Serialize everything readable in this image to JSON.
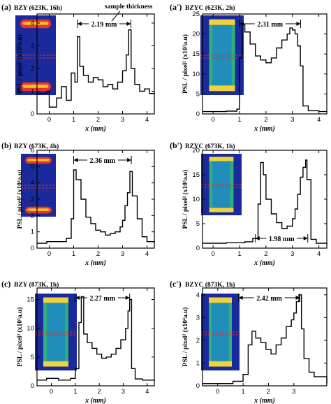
{
  "figure": {
    "note": "sample thickness",
    "colors": {
      "trace": "#000000",
      "inset_bg": "#1a2a9c",
      "marker_line": "#e03030"
    }
  },
  "chart_data": [
    {
      "type": "line",
      "label": "(a)",
      "title": "BZY (623K, 16h)",
      "xlabel": "x (mm)",
      "ylabel": "PSL / pixel² (x10³a.u)",
      "xlim": [
        -0.5,
        4.3
      ],
      "ylim": [
        0,
        4.4
      ],
      "xticks": [
        "0",
        "1",
        "2",
        "3",
        "4"
      ],
      "yticks": [
        "0",
        "1",
        "2",
        "3",
        "4"
      ],
      "thickness": {
        "text": "2.19 mm",
        "from": 1.15,
        "to": 3.34
      },
      "inset": "two-end",
      "series": [
        {
          "x": [
            -0.5,
            -0.1,
            0.0,
            0.3,
            0.5,
            0.7,
            0.9,
            1.05,
            1.15,
            1.25,
            1.4,
            1.6,
            1.8,
            2.0,
            2.2,
            2.4,
            2.6,
            2.8,
            3.0,
            3.15,
            3.25,
            3.35,
            3.5,
            3.7,
            3.9,
            4.1,
            4.3
          ],
          "y": [
            0.9,
            1.0,
            0.3,
            0.7,
            1.2,
            0.6,
            1.8,
            1.4,
            3.4,
            2.1,
            1.7,
            1.4,
            1.6,
            1.5,
            1.2,
            1.3,
            1.1,
            1.4,
            1.9,
            2.6,
            3.7,
            2.0,
            1.3,
            1.0,
            1.1,
            0.9,
            1.0
          ]
        }
      ]
    },
    {
      "type": "line",
      "label": "(a′)",
      "title": "BZYC (623K, 2h)",
      "xlabel": "x (mm)",
      "ylabel": "PSL / pixel² (x10³a.u)",
      "xlim": [
        -0.4,
        4.3
      ],
      "ylim": [
        0,
        25
      ],
      "xticks": [
        "0",
        "1",
        "2",
        "3",
        "4"
      ],
      "yticks": [
        "0",
        "5",
        "10",
        "15",
        "20",
        "25"
      ],
      "thickness": {
        "text": "2.31 mm",
        "from": 1.0,
        "to": 3.31
      },
      "inset": "filled",
      "series": [
        {
          "x": [
            -0.4,
            0.0,
            0.5,
            0.9,
            1.0,
            1.1,
            1.2,
            1.4,
            1.6,
            1.8,
            2.0,
            2.2,
            2.4,
            2.6,
            2.8,
            2.9,
            3.0,
            3.1,
            3.2,
            3.3,
            3.4,
            3.6,
            4.0,
            4.3
          ],
          "y": [
            0.6,
            0.6,
            0.7,
            1.2,
            14,
            22.5,
            20.5,
            17.5,
            14.5,
            13.5,
            12.8,
            14,
            16.5,
            18.5,
            20,
            21.5,
            21,
            20,
            17,
            12,
            2,
            0.8,
            0.6,
            0.5
          ]
        }
      ]
    },
    {
      "type": "line",
      "label": "(b)",
      "title": "BZY (673K, 4h)",
      "xlabel": "x (mm)",
      "ylabel": "PSL / pixel² (x10³a.u)",
      "xlim": [
        -0.5,
        4.3
      ],
      "ylim": [
        0,
        6
      ],
      "xticks": [
        "0",
        "1",
        "2",
        "3",
        "4"
      ],
      "yticks": [
        "0",
        "1",
        "2",
        "3",
        "4",
        "5",
        "6"
      ],
      "thickness": {
        "text": "2.36 mm",
        "from": 1.0,
        "to": 3.36
      },
      "inset": "two-end",
      "series": [
        {
          "x": [
            -0.5,
            -0.1,
            0.3,
            0.7,
            0.9,
            1.0,
            1.1,
            1.3,
            1.5,
            1.7,
            1.9,
            2.1,
            2.3,
            2.5,
            2.7,
            2.9,
            3.0,
            3.1,
            3.2,
            3.3,
            3.4,
            3.6,
            3.8,
            4.0,
            4.3
          ],
          "y": [
            0.3,
            0.4,
            0.4,
            0.6,
            1.8,
            4.8,
            4.2,
            3.0,
            1.9,
            1.5,
            1.1,
            1.0,
            0.8,
            0.9,
            1.0,
            1.3,
            1.7,
            2.6,
            3.4,
            4.7,
            3.2,
            1.8,
            0.7,
            0.4,
            0.3
          ]
        }
      ]
    },
    {
      "type": "line",
      "label": "(b′)",
      "title": "BZYC (673K, 1h)",
      "xlabel": "x (mm)",
      "ylabel": "PSL / pixel² (x10³a.u)",
      "xlim": [
        -0.4,
        4.3
      ],
      "ylim": [
        0,
        20
      ],
      "xticks": [
        "0",
        "1",
        "2",
        "3",
        "4"
      ],
      "yticks": [
        "0",
        "5",
        "10",
        "15",
        "20"
      ],
      "thickness": {
        "text": "1.98 mm",
        "from": 1.6,
        "to": 3.58
      },
      "inset": "filled",
      "series": [
        {
          "x": [
            -0.4,
            0.5,
            1.2,
            1.5,
            1.7,
            1.8,
            1.9,
            2.0,
            2.2,
            2.4,
            2.6,
            2.8,
            3.0,
            3.1,
            3.2,
            3.3,
            3.4,
            3.5,
            3.55,
            3.7,
            3.9,
            4.3
          ],
          "y": [
            1.0,
            1.1,
            1.3,
            2.0,
            9.0,
            17.5,
            15.0,
            10.0,
            7.0,
            5.2,
            4.0,
            4.5,
            6.0,
            8.0,
            11.0,
            14.5,
            16.5,
            18.0,
            14.0,
            1.8,
            1.0,
            0.8
          ]
        }
      ]
    },
    {
      "type": "line",
      "label": "(c)",
      "title": "BZY (873K, 1h)",
      "xlabel": "x (mm)",
      "ylabel": "PSL / pixel² (x10³a.u)",
      "xlim": [
        -0.6,
        4.3
      ],
      "ylim": [
        0,
        17
      ],
      "xticks": [
        "0",
        "1",
        "2",
        "3",
        "4"
      ],
      "yticks": [
        "0",
        "5",
        "10",
        "15"
      ],
      "thickness": {
        "text": "2.27 mm",
        "from": 1.0,
        "to": 3.27
      },
      "inset": "filled",
      "series": [
        {
          "x": [
            -0.6,
            -0.2,
            0.3,
            0.8,
            1.0,
            1.15,
            1.25,
            1.35,
            1.5,
            1.7,
            1.9,
            2.1,
            2.3,
            2.5,
            2.7,
            2.9,
            3.1,
            3.2,
            3.27,
            3.35,
            3.5,
            3.8,
            4.3
          ],
          "y": [
            1.0,
            1.3,
            1.0,
            1.3,
            3.0,
            11.0,
            15.5,
            9.0,
            7.5,
            6.5,
            5.5,
            4.8,
            5.0,
            5.5,
            6.5,
            8.0,
            10.0,
            13.0,
            15.0,
            3.0,
            1.2,
            1.0,
            1.1
          ]
        }
      ]
    },
    {
      "type": "line",
      "label": "(c′)",
      "title": "BZYC (873K, 1h)",
      "xlabel": "x (mm)",
      "ylabel": "PSL / pixel² (x10⁴a.u)",
      "xlim": [
        -0.6,
        4.3
      ],
      "ylim": [
        0,
        4.3
      ],
      "xticks": [
        "0",
        "1",
        "2",
        "3"
      ],
      "yticks": [
        "0",
        "1",
        "2",
        "3",
        "4"
      ],
      "thickness": {
        "text": "2.42 mm",
        "from": 0.82,
        "to": 3.24
      },
      "inset": "filled",
      "series": [
        {
          "x": [
            -0.6,
            0.0,
            0.6,
            1.0,
            1.2,
            1.35,
            1.5,
            1.7,
            1.9,
            2.1,
            2.3,
            2.5,
            2.7,
            2.9,
            3.0,
            3.1,
            3.2,
            3.3,
            3.4,
            3.6,
            3.8,
            4.3
          ],
          "y": [
            0.1,
            0.1,
            0.2,
            0.5,
            1.8,
            2.4,
            2.1,
            1.9,
            1.6,
            1.4,
            1.8,
            2.1,
            2.6,
            2.9,
            3.2,
            3.7,
            4.0,
            2.5,
            1.2,
            0.6,
            0.4,
            0.1
          ]
        }
      ]
    }
  ]
}
